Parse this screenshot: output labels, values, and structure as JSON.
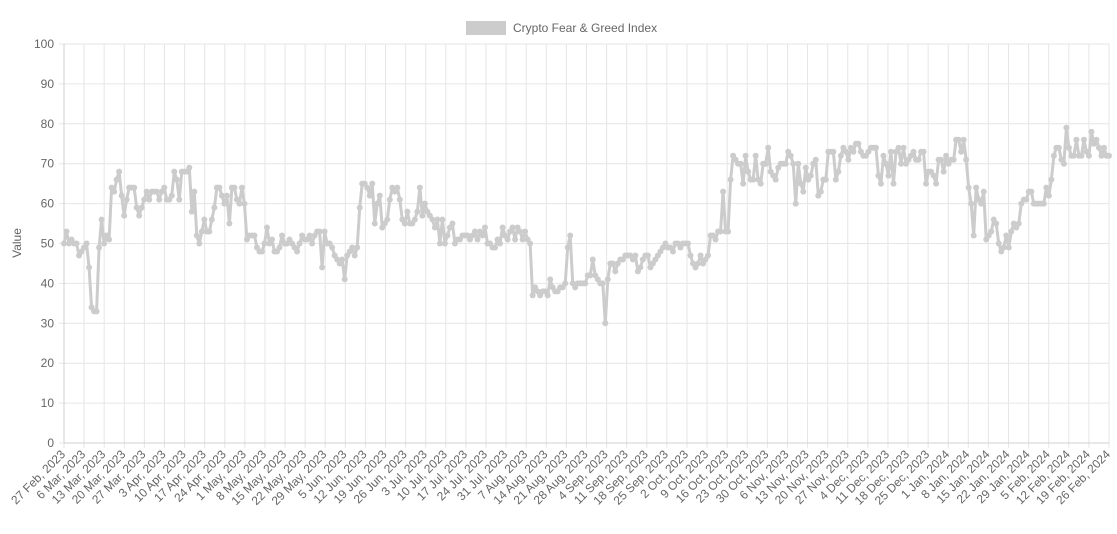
{
  "chart_data": {
    "type": "line",
    "legend": {
      "label": "Crypto Fear & Greed Index",
      "placement": "top-center"
    },
    "ylabel": "Value",
    "ylim": [
      0,
      100
    ],
    "y_ticks": [
      0,
      10,
      20,
      30,
      40,
      50,
      60,
      70,
      80,
      90,
      100
    ],
    "grid": true,
    "colors": {
      "line": "#cccccc",
      "point": "#cccccc",
      "legend_swatch": "#cccccc",
      "grid": "#e6e6e6"
    },
    "x_tick_labels": [
      "27 Feb, 2023",
      "6 Mar, 2023",
      "13 Mar, 2023",
      "20 Mar, 2023",
      "27 Mar, 2023",
      "3 Apr, 2023",
      "10 Apr, 2023",
      "17 Apr, 2023",
      "24 Apr, 2023",
      "1 May, 2023",
      "8 May, 2023",
      "15 May, 2023",
      "22 May, 2023",
      "29 May, 2023",
      "5 Jun, 2023",
      "12 Jun, 2023",
      "19 Jun, 2023",
      "26 Jun, 2023",
      "3 Jul, 2023",
      "10 Jul, 2023",
      "17 Jul, 2023",
      "24 Jul, 2023",
      "31 Jul, 2023",
      "7 Aug, 2023",
      "14 Aug, 2023",
      "21 Aug, 2023",
      "28 Aug, 2023",
      "4 Sep, 2023",
      "11 Sep, 2023",
      "18 Sep, 2023",
      "25 Sep, 2023",
      "2 Oct, 2023",
      "9 Oct, 2023",
      "16 Oct, 2023",
      "23 Oct, 2023",
      "30 Oct, 2023",
      "6 Nov, 2023",
      "13 Nov, 2023",
      "20 Nov, 2023",
      "27 Nov, 2023",
      "4 Dec, 2023",
      "11 Dec, 2023",
      "18 Dec, 2023",
      "25 Dec, 2023",
      "1 Jan, 2024",
      "8 Jan, 2024",
      "15 Jan, 2024",
      "22 Jan, 2024",
      "29 Jan, 2024",
      "5 Feb, 2024",
      "12 Feb, 2024",
      "19 Feb, 2024",
      "26 Feb, 2024"
    ],
    "series": [
      {
        "name": "Crypto Fear & Greed Index",
        "values": [
          50,
          53,
          50,
          51,
          50,
          50,
          47,
          48,
          49,
          50,
          44,
          34,
          33,
          33,
          49,
          56,
          50,
          52,
          51,
          64,
          63,
          66,
          68,
          62,
          57,
          61,
          64,
          64,
          64,
          59,
          57,
          59,
          61,
          63,
          61,
          63,
          63,
          63,
          61,
          63,
          64,
          61,
          61,
          62,
          68,
          66,
          61,
          68,
          68,
          68,
          69,
          58,
          63,
          52,
          50,
          53,
          56,
          53,
          53,
          56,
          59,
          64,
          64,
          62,
          60,
          62,
          55,
          64,
          64,
          61,
          60,
          64,
          60,
          51,
          52,
          52,
          52,
          49,
          48,
          48,
          50,
          54,
          50,
          51,
          48,
          48,
          49,
          52,
          50,
          50,
          51,
          50,
          49,
          48,
          50,
          52,
          51,
          51,
          52,
          50,
          52,
          53,
          53,
          44,
          53,
          50,
          50,
          49,
          47,
          46,
          45,
          46,
          41,
          47,
          48,
          49,
          47,
          49,
          59,
          65,
          65,
          64,
          62,
          65,
          55,
          60,
          62,
          54,
          55,
          56,
          61,
          64,
          63,
          64,
          61,
          56,
          55,
          58,
          55,
          55,
          56,
          58,
          64,
          57,
          60,
          58,
          57,
          56,
          54,
          56,
          50,
          56,
          50,
          52,
          54,
          55,
          50,
          51,
          51,
          52,
          52,
          52,
          51,
          52,
          53,
          51,
          53,
          52,
          54,
          50,
          50,
          49,
          49,
          51,
          50,
          54,
          52,
          51,
          53,
          54,
          51,
          54,
          53,
          51,
          53,
          51,
          50,
          37,
          39,
          38,
          37,
          38,
          38,
          37,
          41,
          39,
          38,
          38,
          39,
          39,
          40,
          49,
          52,
          40,
          39,
          40,
          40,
          40,
          40,
          42,
          42,
          46,
          42,
          41,
          40,
          40,
          30,
          41,
          45,
          45,
          43,
          45,
          46,
          46,
          47,
          47,
          47,
          46,
          47,
          43,
          44,
          46,
          47,
          47,
          44,
          45,
          46,
          47,
          48,
          49,
          50,
          49,
          49,
          48,
          50,
          50,
          49,
          50,
          50,
          50,
          47,
          45,
          44,
          45,
          47,
          45,
          46,
          47,
          52,
          52,
          51,
          53,
          53,
          63,
          53,
          53,
          66,
          72,
          71,
          70,
          70,
          65,
          72,
          68,
          66,
          66,
          72,
          66,
          65,
          70,
          70,
          74,
          68,
          67,
          66,
          69,
          70,
          70,
          70,
          73,
          72,
          70,
          60,
          70,
          65,
          63,
          69,
          66,
          67,
          70,
          71,
          62,
          63,
          66,
          66,
          73,
          73,
          73,
          66,
          68,
          72,
          74,
          73,
          71,
          74,
          73,
          75,
          75,
          73,
          72,
          72,
          73,
          74,
          74,
          74,
          67,
          65,
          72,
          70,
          67,
          73,
          65,
          73,
          74,
          70,
          74,
          70,
          71,
          72,
          73,
          71,
          71,
          73,
          73,
          65,
          68,
          68,
          67,
          65,
          71,
          71,
          68,
          72,
          70,
          71,
          71,
          76,
          76,
          73,
          76,
          71,
          64,
          60,
          52,
          64,
          61,
          60,
          63,
          51,
          52,
          53,
          56,
          55,
          50,
          48,
          49,
          52,
          49,
          53,
          55,
          54,
          55,
          60,
          61,
          61,
          63,
          63,
          60,
          60,
          60,
          60,
          60,
          64,
          62,
          66,
          72,
          74,
          74,
          71,
          70,
          79,
          74,
          72,
          72,
          76,
          72,
          72,
          76,
          73,
          72,
          78,
          75,
          76,
          74,
          72,
          74,
          72,
          72
        ]
      }
    ]
  }
}
